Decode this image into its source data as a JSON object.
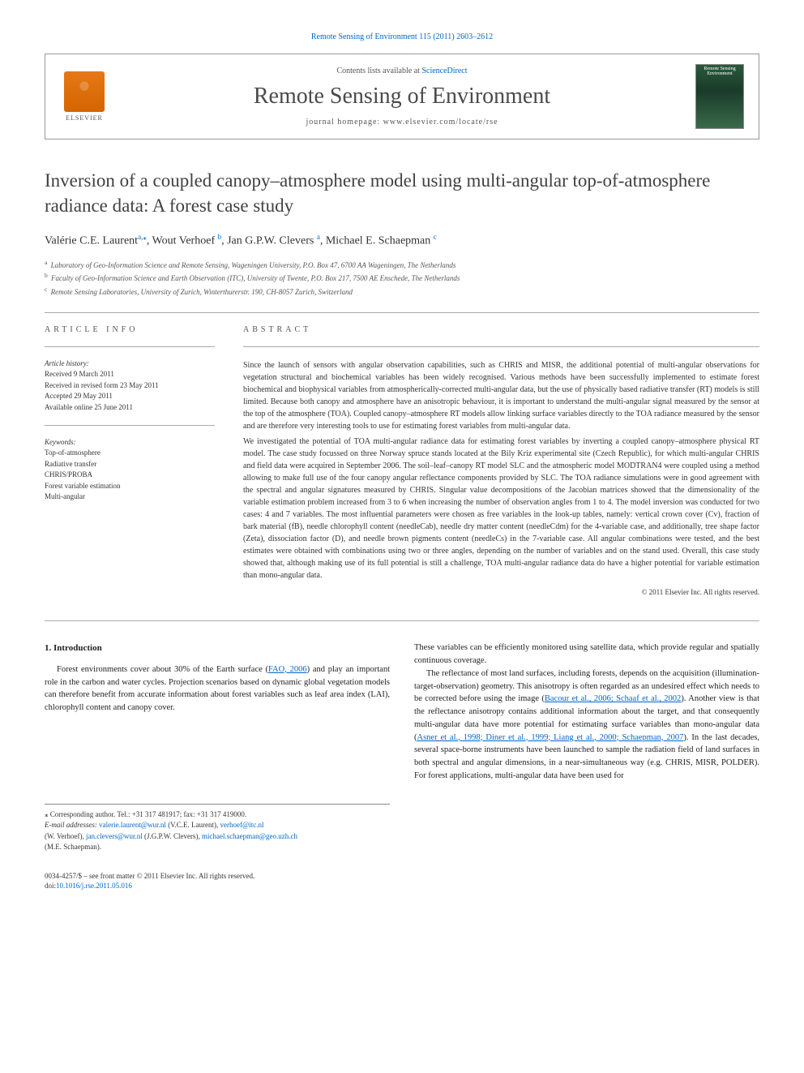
{
  "top_link": "Remote Sensing of Environment 115 (2011) 2603–2612",
  "header": {
    "contents_prefix": "Contents lists available at ",
    "contents_link": "ScienceDirect",
    "journal_title": "Remote Sensing of Environment",
    "homepage_label": "journal homepage: www.elsevier.com/locate/rse",
    "publisher": "ELSEVIER",
    "cover_text": "Remote Sensing Environment"
  },
  "article": {
    "title": "Inversion of a coupled canopy–atmosphere model using multi-angular top-of-atmosphere radiance data: A forest case study",
    "authors_html": "Valérie C.E. Laurent",
    "author1": "Valérie C.E. Laurent",
    "author1_aff": "a,",
    "author1_corr": "⁎",
    "author2": ", Wout Verhoef",
    "author2_aff": "b",
    "author3": ", Jan G.P.W. Clevers",
    "author3_aff": "a",
    "author4": ", Michael E. Schaepman",
    "author4_aff": "c",
    "affiliations": {
      "a": "Laboratory of Geo-Information Science and Remote Sensing, Wageningen University, P.O. Box 47, 6700 AA Wageningen, The Netherlands",
      "b": "Faculty of Geo-Information Science and Earth Observation (ITC), University of Twente, P.O. Box 217, 7500 AE Enschede, The Netherlands",
      "c": "Remote Sensing Laboratories, University of Zurich, Winterthurerstr. 190, CH-8057 Zurich, Switzerland"
    }
  },
  "info": {
    "heading": "ARTICLE INFO",
    "history_heading": "Article history:",
    "history": "Received 9 March 2011\nReceived in revised form 23 May 2011\nAccepted 29 May 2011\nAvailable online 25 June 2011",
    "keywords_heading": "Keywords:",
    "keywords": "Top-of-atmosphere\nRadiative transfer\nCHRIS/PROBA\nForest variable estimation\nMulti-angular"
  },
  "abstract": {
    "heading": "ABSTRACT",
    "p1": "Since the launch of sensors with angular observation capabilities, such as CHRIS and MISR, the additional potential of multi-angular observations for vegetation structural and biochemical variables has been widely recognised. Various methods have been successfully implemented to estimate forest biochemical and biophysical variables from atmospherically-corrected multi-angular data, but the use of physically based radiative transfer (RT) models is still limited. Because both canopy and atmosphere have an anisotropic behaviour, it is important to understand the multi-angular signal measured by the sensor at the top of the atmosphere (TOA). Coupled canopy–atmosphere RT models allow linking surface variables directly to the TOA radiance measured by the sensor and are therefore very interesting tools to use for estimating forest variables from multi-angular data.",
    "p2": "We investigated the potential of TOA multi-angular radiance data for estimating forest variables by inverting a coupled canopy–atmosphere physical RT model. The case study focussed on three Norway spruce stands located at the Bily Kriz experimental site (Czech Republic), for which multi-angular CHRIS and field data were acquired in September 2006. The soil–leaf–canopy RT model SLC and the atmospheric model MODTRAN4 were coupled using a method allowing to make full use of the four canopy angular reflectance components provided by SLC. The TOA radiance simulations were in good agreement with the spectral and angular signatures measured by CHRIS. Singular value decompositions of the Jacobian matrices showed that the dimensionality of the variable estimation problem increased from 3 to 6 when increasing the number of observation angles from 1 to 4. The model inversion was conducted for two cases: 4 and 7 variables. The most influential parameters were chosen as free variables in the look-up tables, namely: vertical crown cover (Cv), fraction of bark material (fB), needle chlorophyll content (needleCab), needle dry matter content (needleCdm) for the 4-variable case, and additionally, tree shape factor (Zeta), dissociation factor (D), and needle brown pigments content (needleCs) in the 7-variable case. All angular combinations were tested, and the best estimates were obtained with combinations using two or three angles, depending on the number of variables and on the stand used. Overall, this case study showed that, although making use of its full potential is still a challenge, TOA multi-angular radiance data do have a higher potential for variable estimation than mono-angular data.",
    "copyright": "© 2011 Elsevier Inc. All rights reserved."
  },
  "body": {
    "section_heading": "1. Introduction",
    "col1_p1a": "Forest environments cover about 30% of the Earth surface (",
    "col1_cite1": "FAO, 2006",
    "col1_p1b": ") and play an important role in the carbon and water cycles. Projection scenarios based on dynamic global vegetation models can therefore benefit from accurate information about forest variables such as leaf area index (LAI), chlorophyll content and canopy cover.",
    "col2_p1": "These variables can be efficiently monitored using satellite data, which provide regular and spatially continuous coverage.",
    "col2_p2a": "The reflectance of most land surfaces, including forests, depends on the acquisition (illumination-target-observation) geometry. This anisotropy is often regarded as an undesired effect which needs to be corrected before using the image (",
    "col2_cite1": "Bacour et al., 2006; Schaaf et al., 2002",
    "col2_p2b": "). Another view is that the reflectance anisotropy contains additional information about the target, and that consequently multi-angular data have more potential for estimating surface variables than mono-angular data (",
    "col2_cite2": "Asner et al., 1998; Diner et al., 1999; Liang et al., 2000; Schaepman, 2007",
    "col2_p2c": "). In the last decades, several space-borne instruments have been launched to sample the radiation field of land surfaces in both spectral and angular dimensions, in a near-simultaneous way (e.g. CHRIS, MISR, POLDER). For forest applications, multi-angular data have been used for"
  },
  "footnote": {
    "corr_label": "⁎ Corresponding author. Tel.: +31 317 481917; fax: +31 317 419000.",
    "emails_label": "E-mail addresses: ",
    "email1": "valerie.laurent@wur.nl",
    "email1_who": " (V.C.E. Laurent), ",
    "email2": "verhoef@itc.nl",
    "email2_who_line2": "(W. Verhoef), ",
    "email3": "jan.clevers@wur.nl",
    "email3_who": " (J.G.P.W. Clevers), ",
    "email4": "michael.schaepman@geo.uzh.ch",
    "email4_who": "(M.E. Schaepman)."
  },
  "bottom": {
    "line1": "0034-4257/$ – see front matter © 2011 Elsevier Inc. All rights reserved.",
    "doi_prefix": "doi:",
    "doi": "10.1016/j.rse.2011.05.016"
  },
  "colors": {
    "link_color": "#0066cc",
    "text_color": "#333333",
    "heading_color": "#414141",
    "border_color": "#999999",
    "elsevier_orange": "#e67817"
  },
  "typography": {
    "title_size_pt": 23,
    "journal_title_size_pt": 28,
    "body_size_pt": 10.5,
    "abstract_size_pt": 10,
    "small_size_pt": 9,
    "font_family": "Georgia, Times New Roman, serif"
  }
}
